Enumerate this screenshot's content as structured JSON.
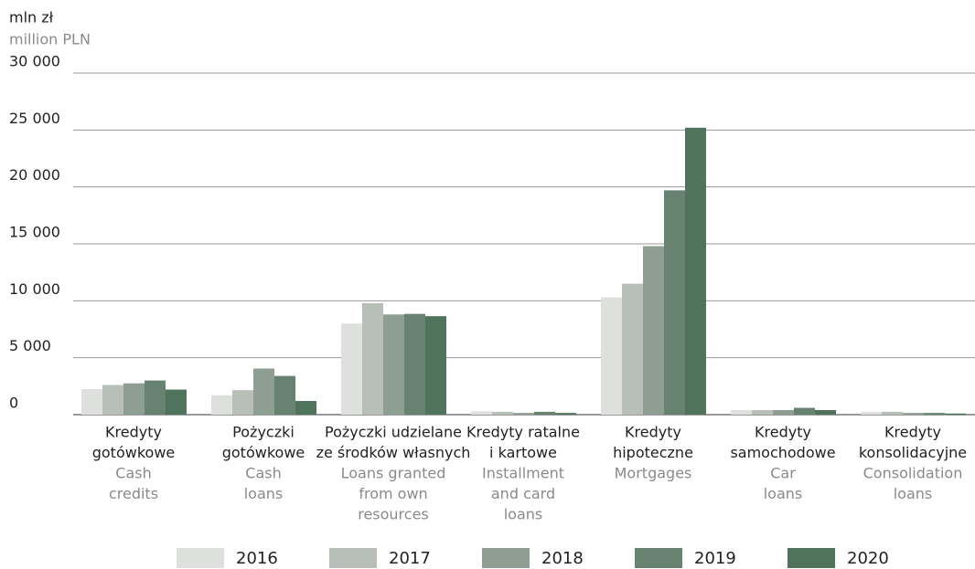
{
  "chart_data": {
    "type": "bar",
    "ylabel": "mln zł",
    "ylabel_en": "million PLN",
    "categories": [
      {
        "pl": [
          "Kredyty",
          "gotówkowe"
        ],
        "en": [
          "Cash",
          "credits"
        ]
      },
      {
        "pl": [
          "Pożyczki",
          "gotówkowe"
        ],
        "en": [
          "Cash",
          "loans"
        ]
      },
      {
        "pl": [
          "Pożyczki udzielane",
          "ze środków własnych"
        ],
        "en": [
          "Loans granted",
          "from own",
          "resources"
        ]
      },
      {
        "pl": [
          "Kredyty ratalne",
          "i kartowe"
        ],
        "en": [
          "Installment",
          "and card",
          "loans"
        ]
      },
      {
        "pl": [
          "Kredyty",
          "hipoteczne"
        ],
        "en": [
          "Mortgages"
        ]
      },
      {
        "pl": [
          "Kredyty",
          "samochodowe"
        ],
        "en": [
          "Car",
          "loans"
        ]
      },
      {
        "pl": [
          "Kredyty",
          "konsolidacyjne"
        ],
        "en": [
          "Consolidation",
          "loans"
        ]
      }
    ],
    "series": [
      {
        "name": "2016",
        "color": "#dde0dc",
        "values": [
          2250,
          1700,
          8000,
          300,
          10300,
          400,
          250
        ]
      },
      {
        "name": "2017",
        "color": "#b8beb8",
        "values": [
          2600,
          2150,
          9800,
          250,
          11500,
          400,
          250
        ]
      },
      {
        "name": "2018",
        "color": "#8e9e92",
        "values": [
          2750,
          4050,
          8800,
          150,
          14800,
          400,
          150
        ]
      },
      {
        "name": "2019",
        "color": "#678270",
        "values": [
          3000,
          3400,
          8850,
          250,
          19700,
          600,
          150
        ]
      },
      {
        "name": "2020",
        "color": "#4f735b",
        "values": [
          2200,
          1200,
          8650,
          150,
          25200,
          400,
          100
        ]
      }
    ],
    "ylim": [
      0,
      30000
    ],
    "yticks": [
      0,
      {
        "value": 5000,
        "label": "5 000"
      },
      {
        "value": 10000,
        "label": "10 000"
      },
      {
        "value": 15000,
        "label": "15 000"
      },
      {
        "value": 20000,
        "label": "20 000"
      },
      {
        "value": 25000,
        "label": "25 000"
      },
      {
        "value": 30000,
        "label": "30 000"
      }
    ],
    "grid": true,
    "legend": "bottom"
  }
}
